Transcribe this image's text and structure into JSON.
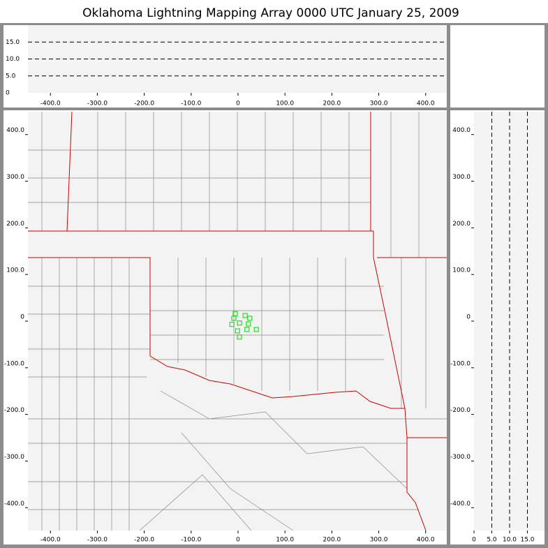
{
  "title": "Oklahoma Lightning Mapping Array   0000 UTC  January 25, 2009",
  "plan_view": {
    "xlim": [
      -448,
      445
    ],
    "ylim": [
      -449,
      449
    ],
    "xticks": [
      {
        "value": -400,
        "label": "-400.0"
      },
      {
        "value": -300,
        "label": "-300.0"
      },
      {
        "value": -200,
        "label": "-200.0"
      },
      {
        "value": -100,
        "label": "-100.0"
      },
      0,
      {
        "value": 100,
        "label": "100.0"
      },
      {
        "value": 200,
        "label": "200.0"
      },
      {
        "value": 300,
        "label": "300.0"
      },
      {
        "value": 400,
        "label": "400.0"
      }
    ],
    "yticks": [
      {
        "value": -400,
        "label": "-400.0"
      },
      {
        "value": -300,
        "label": "-300.0"
      },
      {
        "value": -200,
        "label": "-200.0"
      },
      {
        "value": -100,
        "label": "-100.0"
      },
      0,
      {
        "value": 100,
        "label": "100.0"
      },
      {
        "value": 200,
        "label": "200.0"
      },
      {
        "value": 300,
        "label": "300.0"
      },
      {
        "value": 400,
        "label": "400.0"
      }
    ],
    "point_color": "#22dd22",
    "x": [
      -6,
      -9,
      3,
      -13,
      15,
      25,
      22,
      39,
      19,
      -1,
      3
    ],
    "y": [
      16,
      6,
      -4,
      -7,
      12,
      6,
      -6,
      -18,
      -18,
      -21,
      -34
    ]
  },
  "altitude_view": {
    "ylim": [
      0,
      20
    ],
    "yticks": [
      0,
      {
        "value": 5,
        "label": "5.0"
      },
      {
        "value": 10,
        "label": "10.0"
      },
      {
        "value": 15,
        "label": "15.0"
      }
    ]
  },
  "side_view": {
    "xlim": [
      0,
      20
    ],
    "xticks": [
      0,
      {
        "value": 5,
        "label": "5.0"
      },
      {
        "value": 10,
        "label": "10.0"
      },
      {
        "value": 15,
        "label": "15.0"
      }
    ]
  }
}
